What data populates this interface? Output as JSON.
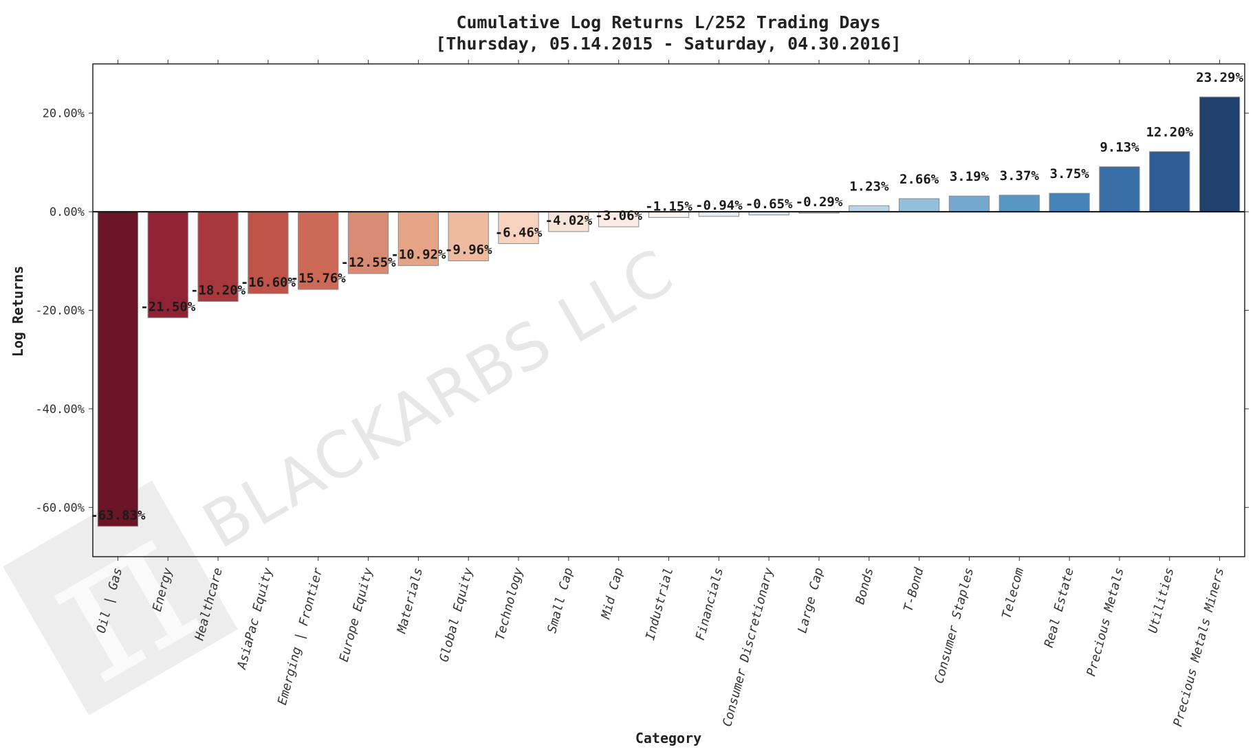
{
  "chart_data": {
    "type": "bar",
    "title_line1": "Cumulative Log Returns L/252 Trading Days",
    "title_line2": "[Thursday, 05.14.2015 - Saturday, 04.30.2016]",
    "xlabel": "Category",
    "ylabel": "Log Returns",
    "ylim": [
      -70,
      30
    ],
    "yticks": [
      20,
      0,
      -20,
      -40,
      -60
    ],
    "ytick_labels": [
      "20.00%",
      "0.00%",
      "-20.00%",
      "-40.00%",
      "-60.00%"
    ],
    "grid": false,
    "categories": [
      "Oil | Gas",
      "Energy",
      "Healthcare",
      "AsiaPac Equity",
      "Emerging | Frontier",
      "Europe Equity",
      "Materials",
      "Global Equity",
      "Technology",
      "Small Cap",
      "Mid Cap",
      "Industrial",
      "Financials",
      "Consumer Discretionary",
      "Large Cap",
      "Bonds",
      "T-Bond",
      "Consumer Staples",
      "Telecom",
      "Real Estate",
      "Precious Metals",
      "Utilities",
      "Precious Metals Miners"
    ],
    "values": [
      -63.83,
      -21.5,
      -18.2,
      -16.6,
      -15.76,
      -12.55,
      -10.92,
      -9.96,
      -6.46,
      -4.02,
      -3.06,
      -1.15,
      -0.94,
      -0.65,
      -0.29,
      1.23,
      2.66,
      3.19,
      3.37,
      3.75,
      9.13,
      12.2,
      23.29
    ],
    "data_labels": [
      "-63.83%",
      "-21.50%",
      "-18.20%",
      "-16.60%",
      "-15.76%",
      "-12.55%",
      "-10.92%",
      "-9.96%",
      "-6.46%",
      "-4.02%",
      "-3.06%",
      "-1.15%",
      "-0.94%",
      "-0.65%",
      "-0.29%",
      "1.23%",
      "2.66%",
      "3.19%",
      "3.37%",
      "3.75%",
      "9.13%",
      "12.20%",
      "23.29%"
    ],
    "colors": [
      "#6c1527",
      "#8f2234",
      "#a9383d",
      "#bf5347",
      "#cc6a57",
      "#d98a73",
      "#e5a485",
      "#efbba0",
      "#f6d2bf",
      "#f8e3d8",
      "#f9ece6",
      "#f7f4f2",
      "#e6edf2",
      "#dbe7ef",
      "#d2e2ec",
      "#b9d4e5",
      "#94bfd8",
      "#74a9cd",
      "#5896c3",
      "#4683b8",
      "#3a6ea6",
      "#2f5d93",
      "#20416b"
    ]
  },
  "watermark": {
    "text": "BLACKARBS LLC",
    "glyph": "π"
  }
}
